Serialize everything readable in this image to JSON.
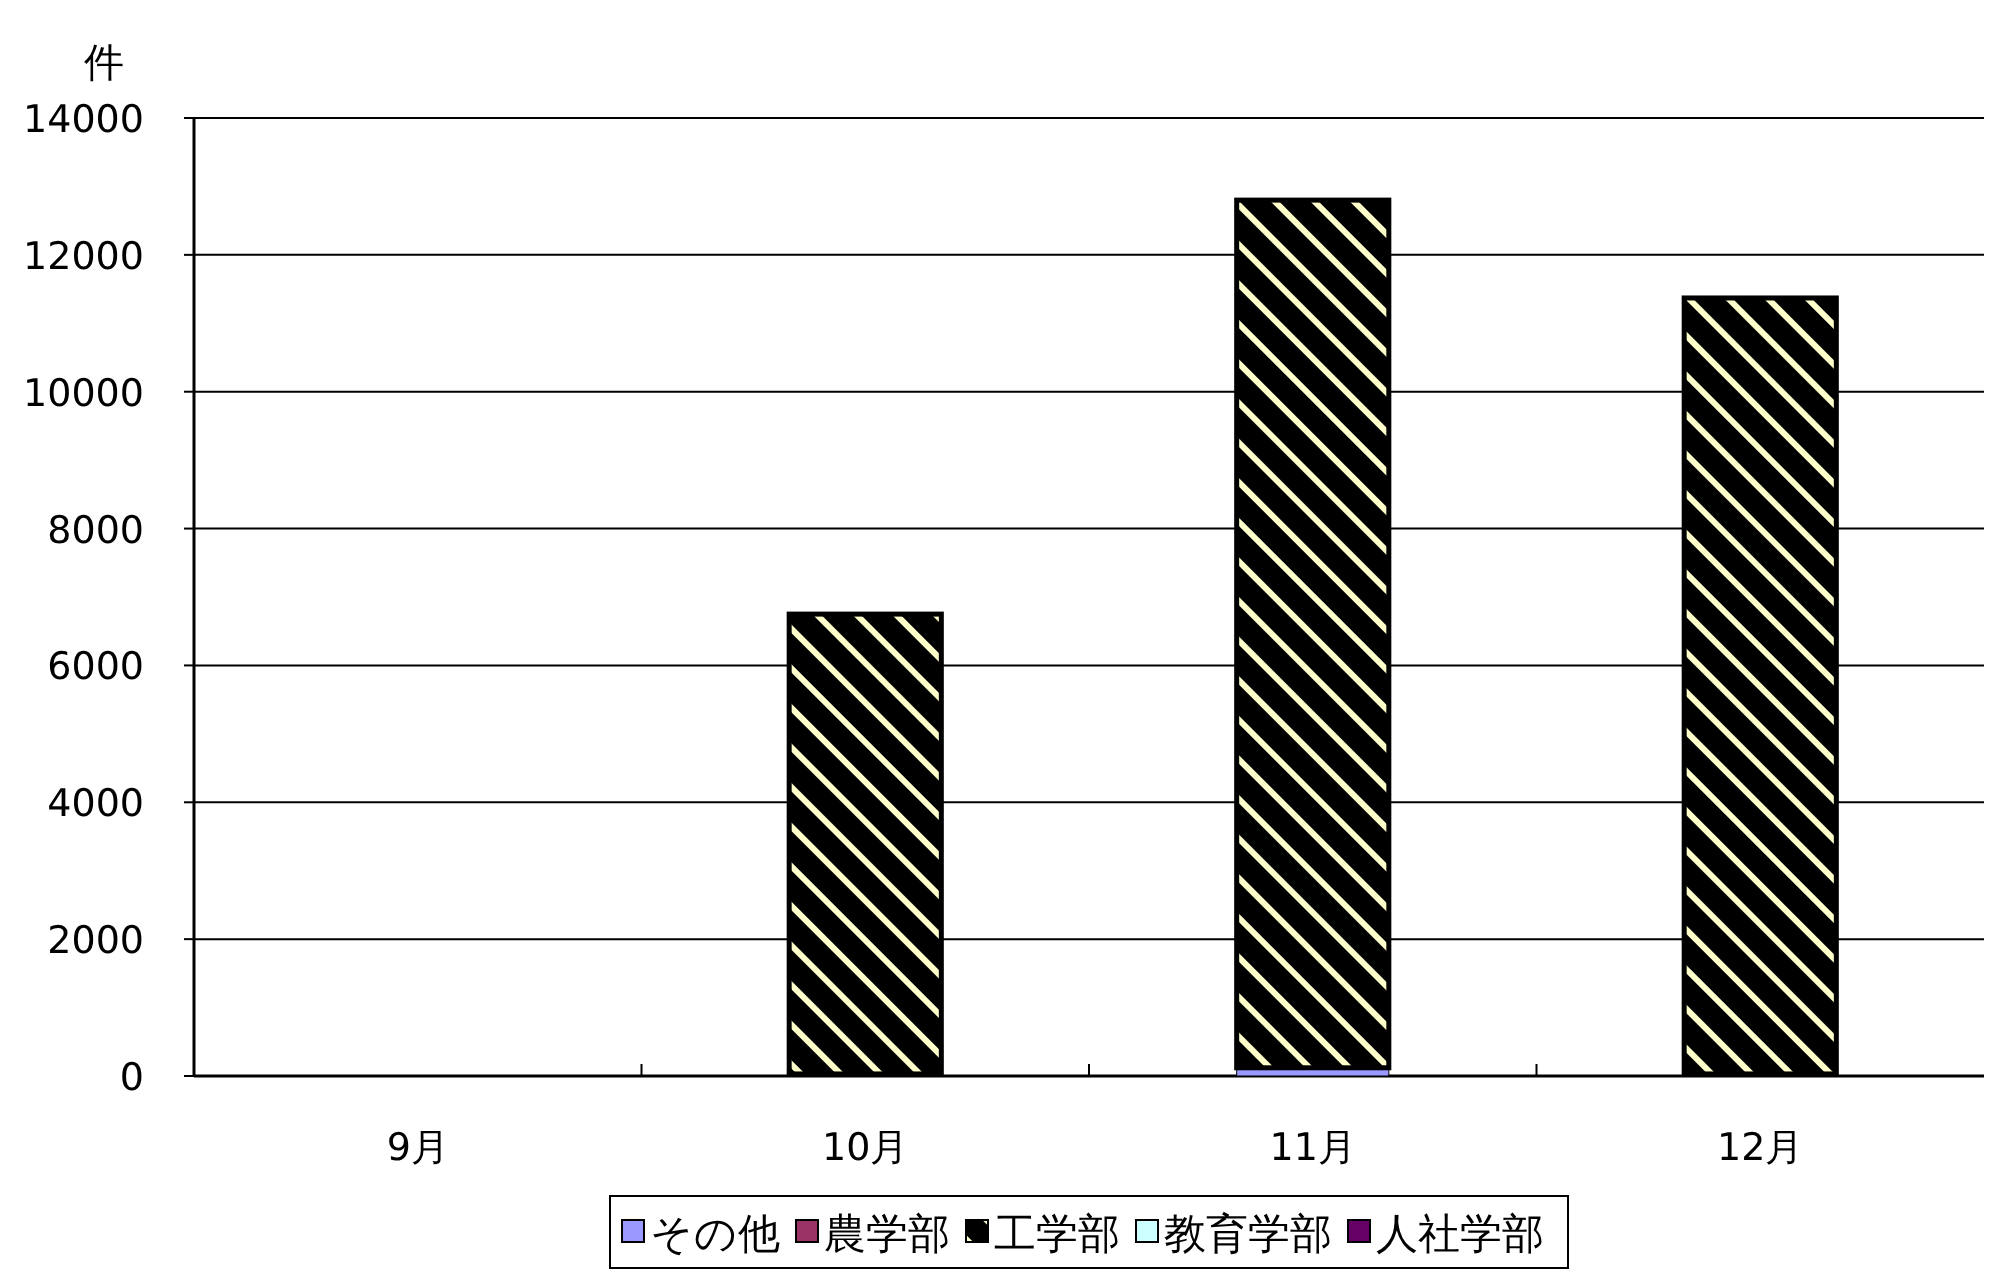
{
  "chart_data": {
    "type": "bar",
    "stacked": true,
    "ylabel": "件",
    "categories": [
      "9月",
      "10月",
      "11月",
      "12月"
    ],
    "series": [
      {
        "name": "その他",
        "color": "#9999ff",
        "values": [
          0,
          30,
          120,
          30
        ]
      },
      {
        "name": "農学部",
        "color": "#993366",
        "values": [
          0,
          0,
          0,
          0
        ]
      },
      {
        "name": "工学部",
        "color": "#000000",
        "values": [
          0,
          6720,
          12680,
          11340
        ]
      },
      {
        "name": "教育学部",
        "color": "#ccffff",
        "values": [
          0,
          0,
          0,
          0
        ]
      },
      {
        "name": "人社学部",
        "color": "#660066",
        "values": [
          0,
          0,
          0,
          0
        ]
      }
    ],
    "ylim": [
      0,
      14000
    ],
    "yticks": [
      0,
      2000,
      4000,
      6000,
      8000,
      10000,
      12000,
      14000
    ],
    "grid": "y",
    "legend": "bottom"
  }
}
